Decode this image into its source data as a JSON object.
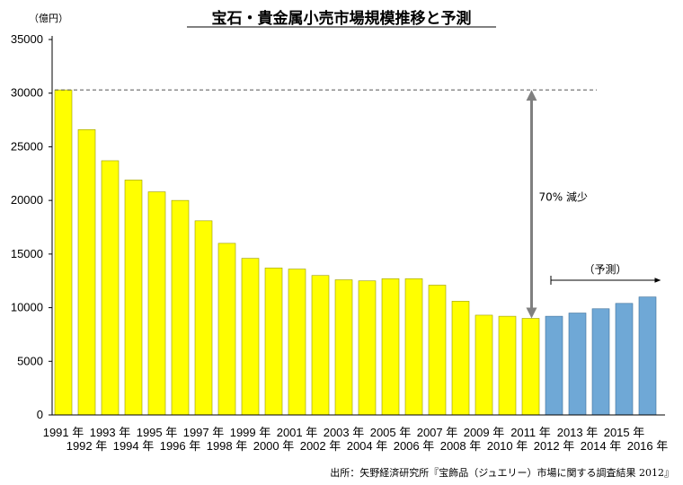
{
  "chart_data": {
    "type": "bar",
    "title": "宝石・貴金属小売市場規模推移と予測",
    "ylabel": "（億円）",
    "ylim": [
      0,
      35000
    ],
    "yticks": [
      0,
      5000,
      10000,
      15000,
      20000,
      25000,
      30000,
      35000
    ],
    "grid": false,
    "categories": [
      "1991 年",
      "1992 年",
      "1993 年",
      "1994 年",
      "1995 年",
      "1996 年",
      "1997 年",
      "1998 年",
      "1999 年",
      "2000 年",
      "2001 年",
      "2002 年",
      "2003 年",
      "2004 年",
      "2005 年",
      "2006 年",
      "2007 年",
      "2008 年",
      "2009 年",
      "2010 年",
      "2011 年",
      "2012 年",
      "2013 年",
      "2014 年",
      "2015 年",
      "2016 年"
    ],
    "values": [
      30300,
      26600,
      23700,
      21900,
      20800,
      20000,
      18100,
      16000,
      14600,
      13700,
      13600,
      13000,
      12600,
      12500,
      12700,
      12700,
      12100,
      10600,
      9300,
      9200,
      9000,
      9200,
      9500,
      9900,
      10400,
      11000
    ],
    "forecast_start_index": 21,
    "colors": {
      "actual": "#ffff00",
      "forecast": "#6fa8d6",
      "arrow": "#808080"
    },
    "annotations": {
      "reduction": "70% 減少",
      "forecast": "（予測）"
    },
    "source": "出所：矢野経済研究所『宝飾品（ジュエリー）市場に関する調査結果 2012』"
  }
}
